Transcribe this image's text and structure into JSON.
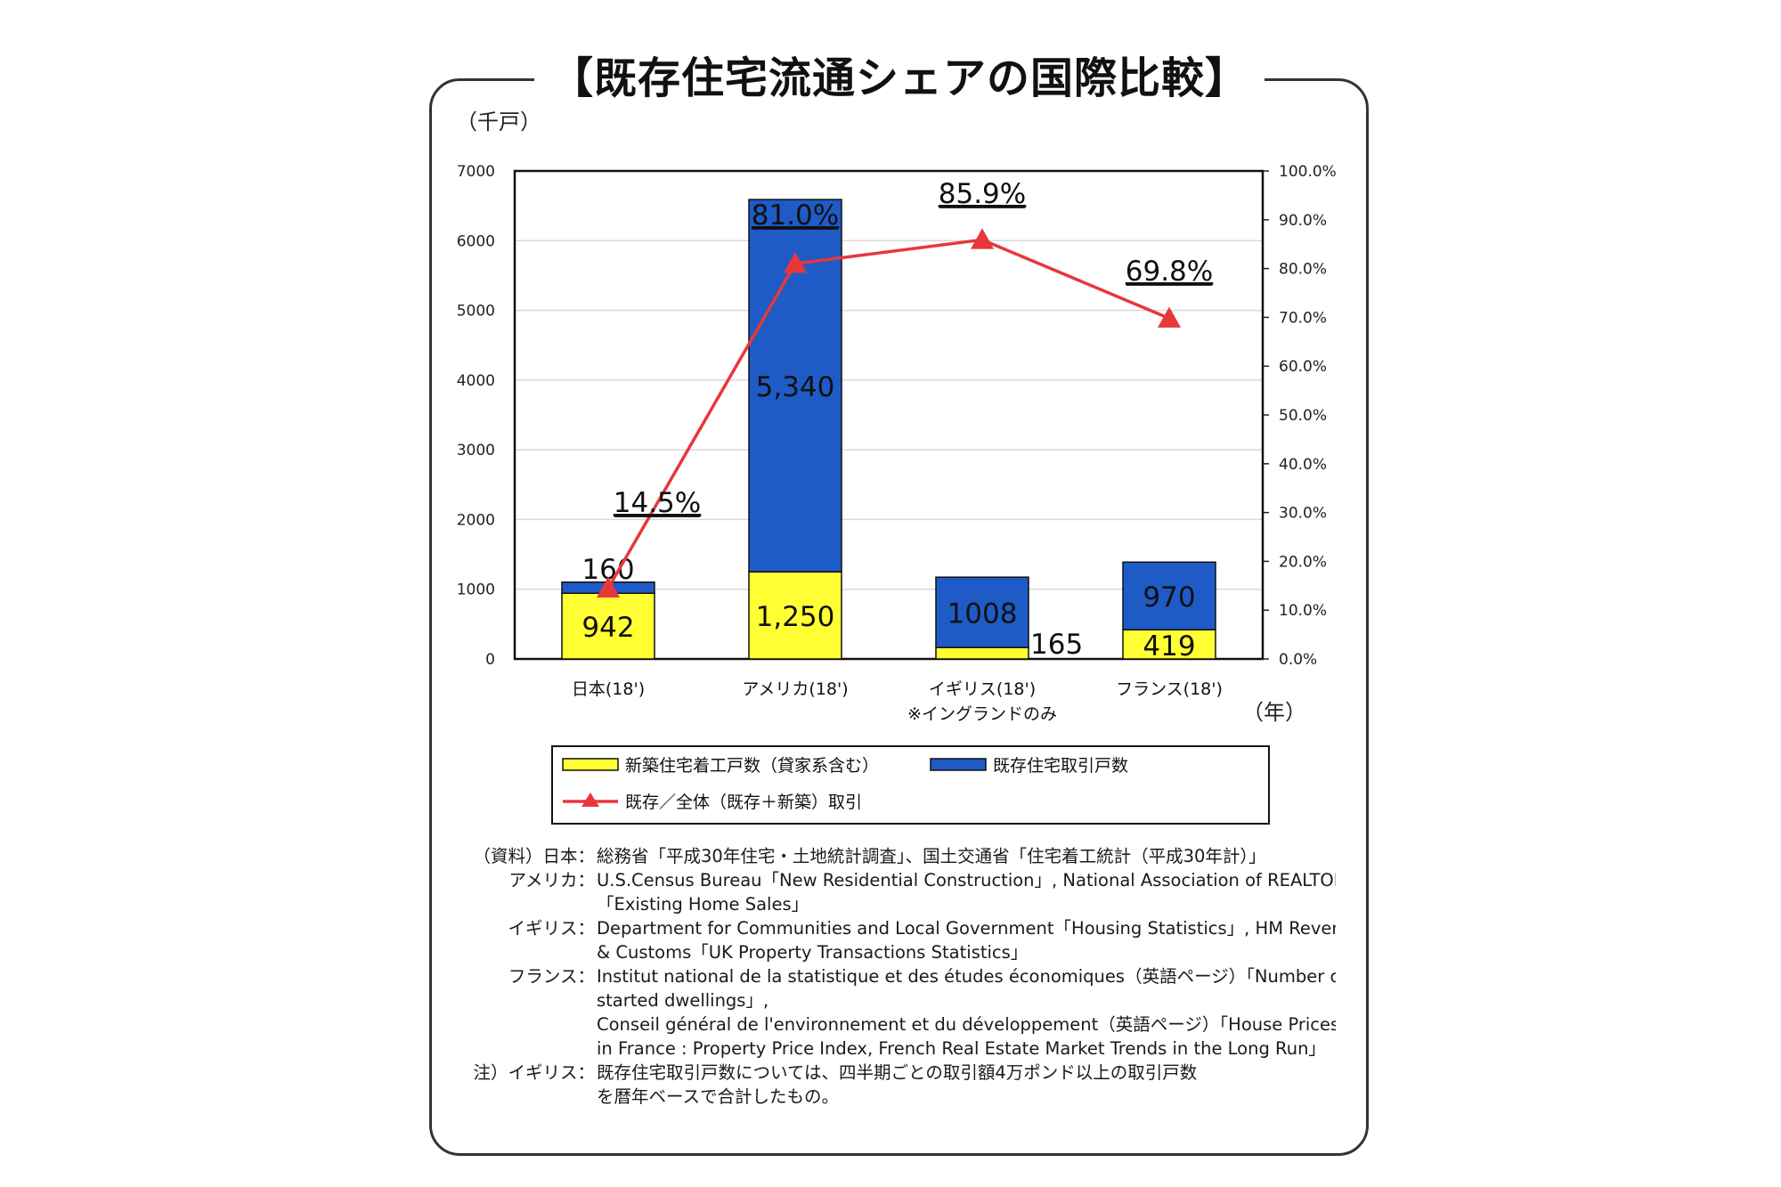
{
  "title": "【既存住宅流通シェアの国際比較】",
  "chart_data": {
    "type": "bar",
    "stacked": true,
    "categories": [
      "日本(18')",
      "アメリカ(18')",
      "イギリス(18')",
      "フランス(18')"
    ],
    "category_notes": [
      "",
      "",
      "※イングランドのみ",
      ""
    ],
    "y_unit": "（千戸）",
    "x_unit": "（年）",
    "ylim": [
      0,
      7000
    ],
    "yticks": [
      "0",
      "1000",
      "2000",
      "3000",
      "4000",
      "5000",
      "6000",
      "7000"
    ],
    "y2lim": [
      0,
      100
    ],
    "y2ticks": [
      "0.0%",
      "10.0%",
      "20.0%",
      "30.0%",
      "40.0%",
      "50.0%",
      "60.0%",
      "70.0%",
      "80.0%",
      "90.0%",
      "100.0%"
    ],
    "grid": true,
    "series": [
      {
        "name": "新築住宅着工戸数（貸家系含む）",
        "kind": "bar",
        "color": "#ffff33",
        "values": [
          942,
          1250,
          165,
          419
        ],
        "labels": [
          "942",
          "1,250",
          "165",
          "419"
        ]
      },
      {
        "name": "既存住宅取引戸数",
        "kind": "bar",
        "color": "#1f5bc6",
        "values": [
          160,
          5340,
          1008,
          970
        ],
        "labels": [
          "160",
          "5,340",
          "1008",
          "970"
        ]
      },
      {
        "name": "既存／全体（既存＋新築）取引",
        "kind": "line",
        "axis": "right",
        "color": "#e8373a",
        "values": [
          14.5,
          81.0,
          85.9,
          69.8
        ],
        "labels": [
          "14.5%",
          "81.0%",
          "85.9%",
          "69.8%"
        ]
      }
    ]
  },
  "sources": [
    {
      "label": "（資料）日本：",
      "text": "総務省「平成30年住宅・土地統計調査」、国土交通省「住宅着工統計（平成30年計）」"
    },
    {
      "label": "アメリカ：",
      "text": "U.S.Census Bureau「New Residential Construction」, National Association of REALTORS"
    },
    {
      "label": "",
      "text": "「Existing Home Sales」"
    },
    {
      "label": "イギリス：",
      "text": "Department for Communities and Local Government「Housing Statistics」, HM Revenue"
    },
    {
      "label": "",
      "text": "& Customs「UK Property Transactions Statistics」"
    },
    {
      "label": "フランス：",
      "text": "Institut national de la statistique et des études économiques（英語ページ）「Number of"
    },
    {
      "label": "",
      "text": "started dwellings」,"
    },
    {
      "label": "",
      "text": "Conseil général de l'environnement et du développement（英語ページ）「House Prices"
    },
    {
      "label": "",
      "text": "in France : Property Price Index, French Real Estate Market Trends in the Long Run」"
    },
    {
      "label": "注）イギリス：",
      "text": "既存住宅取引戸数については、四半期ごとの取引額4万ポンド以上の取引戸数"
    },
    {
      "label": "",
      "text": "を暦年ベースで合計したもの。"
    }
  ]
}
